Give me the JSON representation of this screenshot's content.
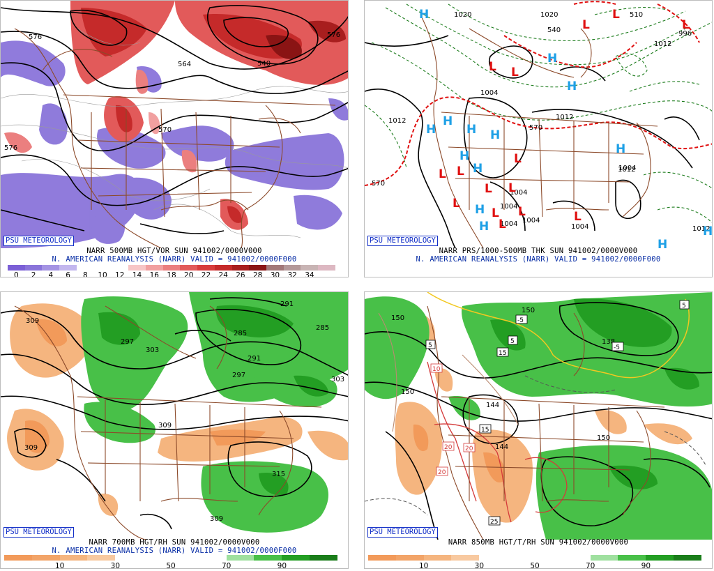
{
  "panel_tl": {
    "badge": "PSU METEOROLOGY",
    "caption1": "NARR 500MB HGT/VOR SUN 941002/0000V000",
    "caption2": "N. AMERICAN REANALYSIS (NARR) VALID = 941002/0000F000",
    "contours": [
      "576",
      "576",
      "564",
      "540",
      "570",
      "576"
    ],
    "colorbar_colors": [
      "#7b5fd6",
      "#8a74da",
      "#a493e3",
      "#c3b7ee",
      "#ffffff",
      "#ffffff",
      "#ffffff",
      "#f7c6c6",
      "#f1a0a0",
      "#eb7f7f",
      "#e25a5a",
      "#d83c3c",
      "#c52a2a",
      "#a81e1e",
      "#8a1414",
      "#a27878",
      "#b49999",
      "#c8b4b4",
      "#ddb8c2"
    ],
    "colorbar_ticks": [
      "0",
      "2",
      "4",
      "6",
      "8",
      "10",
      "12",
      "14",
      "16",
      "18",
      "20",
      "22",
      "24",
      "26",
      "28",
      "30",
      "32",
      "34"
    ]
  },
  "panel_tr": {
    "badge": "PSU METEOROLOGY",
    "caption1": "NARR PRS/1000-500MB THK SUN 941002/0000V000",
    "caption2": "N. AMERICAN REANALYSIS (NARR) VALID = 941002/0000F000",
    "contours": [
      "1020",
      "1020",
      "1004",
      "1012",
      "1012",
      "1012",
      "1004",
      "1004",
      "1004",
      "1004",
      "1004",
      "570",
      "570",
      "540",
      "510",
      "996",
      "1012",
      "1004",
      "1012"
    ],
    "highs": [
      "H",
      "H",
      "H",
      "H",
      "H",
      "H",
      "H",
      "H",
      "H",
      "H",
      "H",
      "H",
      "H",
      "H"
    ],
    "lows": [
      "L",
      "L",
      "L",
      "L",
      "L",
      "L",
      "L",
      "L",
      "L",
      "L",
      "L",
      "L",
      "L",
      "L",
      "L"
    ]
  },
  "panel_bl": {
    "badge": "PSU METEOROLOGY",
    "caption1": "NARR 700MB HGT/RH SUN 941002/0000V000",
    "caption2": "N. AMERICAN REANALYSIS (NARR) VALID = 941002/0000F000",
    "contours": [
      "309",
      "297",
      "303",
      "285",
      "291",
      "297",
      "303",
      "309",
      "309",
      "315",
      "309",
      "285",
      "291"
    ],
    "colorbar_colors": [
      "#f29a5a",
      "#f2a468",
      "#f5b57f",
      "#f8c9a0",
      "#ffffff",
      "#ffffff",
      "#ffffff",
      "#ffffff",
      "#9fe09f",
      "#48c048",
      "#239e23",
      "#1a7d1a"
    ],
    "colorbar_ticks": [
      "10",
      "30",
      "50",
      "70",
      "90"
    ]
  },
  "panel_br": {
    "badge": "PSU METEOROLOGY",
    "caption1": "NARR 850MB HGT/T/RH SUN 941002/0000V000",
    "contours": [
      "150",
      "150",
      "144",
      "150",
      "144",
      "138",
      "150"
    ],
    "temp_boxes": [
      "5",
      "-5",
      "5",
      "15",
      "10",
      "15",
      "20",
      "20",
      "20",
      "25",
      "5",
      "-5"
    ],
    "colorbar_colors": [
      "#f29a5a",
      "#f2a468",
      "#f5b57f",
      "#f8c9a0",
      "#ffffff",
      "#ffffff",
      "#ffffff",
      "#ffffff",
      "#9fe09f",
      "#48c048",
      "#239e23",
      "#1a7d1a"
    ],
    "colorbar_ticks": [
      "10",
      "30",
      "50",
      "70",
      "90"
    ]
  },
  "colors": {
    "border": "#8c4a2a",
    "badge": "#1430c8",
    "caption_blue": "#0a2fa6",
    "high_blue": "#1ea0e6",
    "low_red": "#e01010",
    "isobar_green": "#1e7d1e"
  }
}
